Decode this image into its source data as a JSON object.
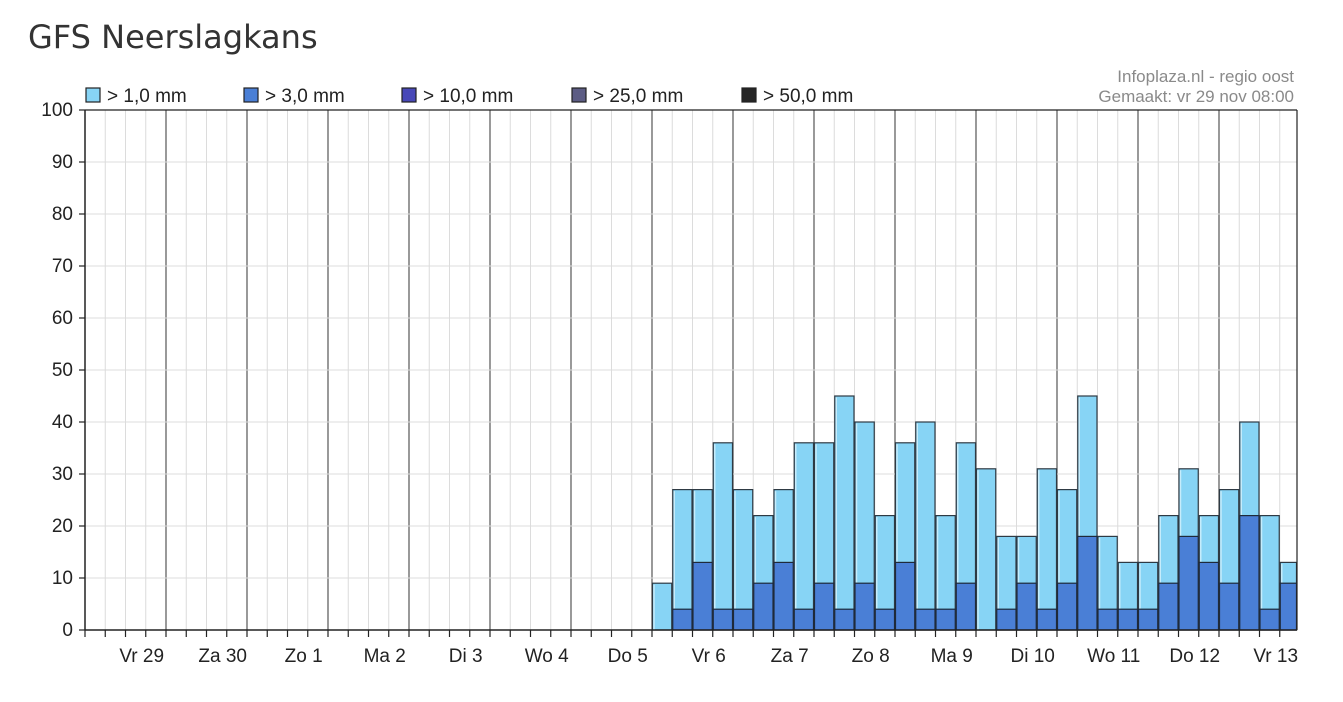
{
  "header": {
    "title": "GFS Neerslagkans"
  },
  "chart_data": {
    "type": "bar",
    "title": "GFS Neerslagkans",
    "source_line1": "Infoplaza.nl - regio oost",
    "source_line2": "Gemaakt: vr 29 nov 08:00",
    "ylim": [
      0,
      100
    ],
    "y_ticks": [
      0,
      10,
      20,
      30,
      40,
      50,
      60,
      70,
      80,
      90,
      100
    ],
    "day_labels": [
      "Vr 29",
      "Za 30",
      "Zo 1",
      "Ma 2",
      "Di 3",
      "Wo 4",
      "Do 5",
      "Vr 6",
      "Za 7",
      "Zo 8",
      "Ma 9",
      "Di 10",
      "Wo 11",
      "Do 12",
      "Vr 13"
    ],
    "slots_per_day": 4,
    "legend_position": "top-left",
    "grid": true,
    "first_slot_index": 28,
    "series": [
      {
        "name": "> 1,0 mm",
        "color": "#87d4f5",
        "values": [
          9,
          27,
          27,
          36,
          27,
          22,
          27,
          36,
          36,
          45,
          40,
          22,
          36,
          40,
          22,
          36,
          31,
          18,
          18,
          31,
          27,
          45,
          18,
          13,
          13,
          22,
          31,
          22,
          27,
          40,
          22,
          13
        ]
      },
      {
        "name": "> 3,0 mm",
        "color": "#4a7fd6",
        "values": [
          0,
          4,
          13,
          4,
          4,
          9,
          13,
          4,
          9,
          4,
          9,
          4,
          13,
          4,
          4,
          9,
          0,
          4,
          9,
          4,
          9,
          18,
          4,
          4,
          4,
          9,
          18,
          13,
          9,
          22,
          4,
          9
        ]
      },
      {
        "name": "> 10,0 mm",
        "color": "#4848b8",
        "values": []
      },
      {
        "name": "> 25,0 mm",
        "color": "#5c5c84",
        "values": []
      },
      {
        "name": "> 50,0 mm",
        "color": "#262626",
        "values": []
      }
    ]
  }
}
